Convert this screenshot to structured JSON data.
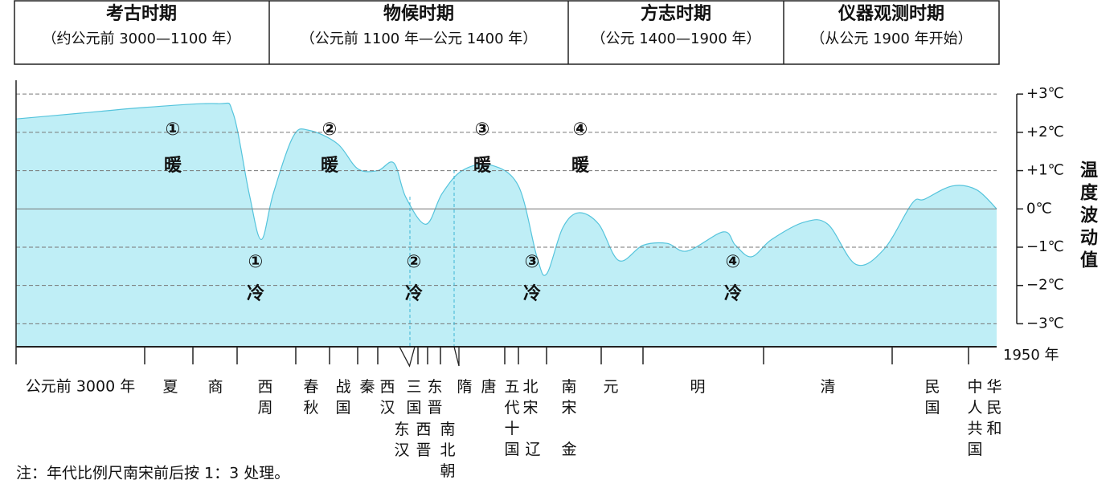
{
  "chart_data": {
    "type": "area",
    "periods": [
      {
        "title": "考古时期",
        "subtitle": "（约公元前 3000—1100 年）"
      },
      {
        "title": "物候时期",
        "subtitle": "（公元前 1100 年—公元 1400 年）"
      },
      {
        "title": "方志时期",
        "subtitle": "（公元 1400—1900 年）"
      },
      {
        "title": "仪器观测时期",
        "subtitle": "（从公元 1900 年开始）"
      }
    ],
    "ylabel": "温度波动值",
    "categories": [
      null,
      null,
      null,
      null,
      null,
      null,
      null,
      null,
      null,
      null,
      null,
      null,
      null,
      null,
      null,
      null,
      null,
      null,
      null,
      null,
      null,
      null,
      null,
      null,
      null,
      null,
      null,
      null,
      null,
      null,
      null,
      null,
      null,
      null,
      null,
      null,
      null,
      null,
      null,
      null,
      null,
      null
    ],
    "values": [
      2.35,
      2.5,
      2.65,
      2.75,
      2.5,
      0.4,
      -0.8,
      0.4,
      1.9,
      2.05,
      1.7,
      1.05,
      1.0,
      1.2,
      0.3,
      -0.4,
      0.4,
      1.0,
      1.15,
      0.6,
      -1.25,
      -1.7,
      -0.5,
      -0.1,
      -0.4,
      -1.35,
      -0.95,
      -0.9,
      -1.1,
      -0.6,
      -0.95,
      -1.25,
      -0.8,
      -0.35,
      -0.4,
      -1.45,
      -1.05,
      0.15,
      0.25,
      0.6,
      0.5,
      0
    ],
    "color": "#bfeef6",
    "line_color": "#55c4dc",
    "ylim": [
      -3.6,
      3.36
    ],
    "yticks": [
      {
        "value": 3,
        "label": "+3℃"
      },
      {
        "value": 2,
        "label": "+2℃"
      },
      {
        "value": 1,
        "label": "+1℃"
      },
      {
        "value": 0,
        "label": "0℃"
      },
      {
        "value": -1,
        "label": "−1℃"
      },
      {
        "value": -2,
        "label": "−2℃"
      },
      {
        "value": -3,
        "label": "−3℃"
      }
    ],
    "grid": true,
    "warm": [
      {
        "num": "①",
        "label": "暖"
      },
      {
        "num": "②",
        "label": "暖"
      },
      {
        "num": "③",
        "label": "暖"
      },
      {
        "num": "④",
        "label": "暖"
      }
    ],
    "cold": [
      {
        "num": "①",
        "label": "冷"
      },
      {
        "num": "②",
        "label": "冷"
      },
      {
        "num": "③",
        "label": "冷"
      },
      {
        "num": "④",
        "label": "冷"
      }
    ],
    "eras": [
      "公元前 3000 年",
      "夏",
      "商",
      "西周",
      "春秋",
      "战国",
      "秦",
      "西汉",
      "三国",
      "东晋",
      "东汉",
      "西晋",
      "南北朝",
      "隋",
      "唐",
      "五代十国",
      "北宋",
      "辽",
      "南宋",
      "金",
      "元",
      "明",
      "清",
      "民国",
      "中华人民共和国"
    ],
    "end_label": "1950 年",
    "note": "注：年代比例尺南宋前后按 1：3 处理。"
  }
}
